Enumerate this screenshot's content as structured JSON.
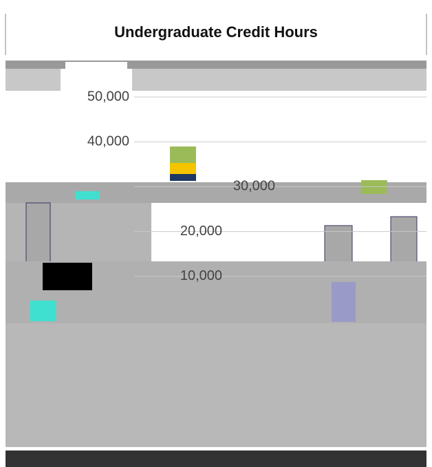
{
  "chart_data": {
    "type": "bar",
    "title": "Undergraduate Credit Hours",
    "ylim": [
      0,
      50000
    ],
    "yticks": [
      {
        "value": 10000,
        "label": "10,000"
      },
      {
        "value": 20000,
        "label": "20,000"
      },
      {
        "value": 30000,
        "label": "30,000"
      },
      {
        "value": 40000,
        "label": "40,000"
      },
      {
        "value": 50000,
        "label": "50,000"
      }
    ],
    "grid": true
  }
}
